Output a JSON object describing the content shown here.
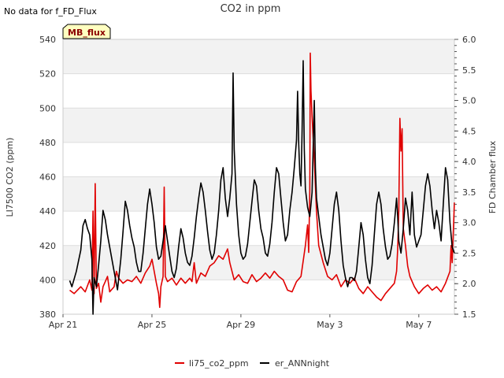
{
  "chart_data": {
    "type": "line",
    "title": "CO2 in ppm",
    "note": "No data for f_FD_Flux",
    "badge": "MB_flux",
    "ylabel": "LI7500 CO2 (ppm)",
    "y2label": "FD Chamber flux",
    "ylim": [
      380,
      540
    ],
    "y2lim": [
      1.5,
      6.0
    ],
    "yticks": [
      "380",
      "400",
      "420",
      "440",
      "460",
      "480",
      "500",
      "520",
      "540"
    ],
    "y2ticks": [
      "1.5",
      "2.0",
      "2.5",
      "3.0",
      "3.5",
      "4.0",
      "4.5",
      "5.0",
      "5.5",
      "6.0"
    ],
    "xlim": [
      0,
      17.6
    ],
    "xticks": [
      {
        "label": "Apr 21",
        "day": 0
      },
      {
        "label": "Apr 25",
        "day": 4
      },
      {
        "label": "Apr 29",
        "day": 8
      },
      {
        "label": "May 3",
        "day": 12
      },
      {
        "label": "May 7",
        "day": 16
      }
    ],
    "series": [
      {
        "name": "li75_co2_ppm",
        "axis": "left",
        "color": "#e00000",
        "points": [
          [
            0.3,
            394
          ],
          [
            0.5,
            392
          ],
          [
            0.8,
            396
          ],
          [
            1.0,
            393
          ],
          [
            1.2,
            400
          ],
          [
            1.3,
            394
          ],
          [
            1.35,
            440
          ],
          [
            1.4,
            392
          ],
          [
            1.45,
            456
          ],
          [
            1.5,
            395
          ],
          [
            1.6,
            398
          ],
          [
            1.7,
            387
          ],
          [
            1.8,
            396
          ],
          [
            1.9,
            399
          ],
          [
            2.0,
            402
          ],
          [
            2.1,
            393
          ],
          [
            2.3,
            396
          ],
          [
            2.4,
            405
          ],
          [
            2.5,
            401
          ],
          [
            2.7,
            398
          ],
          [
            2.9,
            400
          ],
          [
            3.1,
            399
          ],
          [
            3.3,
            402
          ],
          [
            3.5,
            398
          ],
          [
            3.7,
            404
          ],
          [
            3.9,
            408
          ],
          [
            4.0,
            412
          ],
          [
            4.1,
            405
          ],
          [
            4.2,
            398
          ],
          [
            4.3,
            392
          ],
          [
            4.35,
            384
          ],
          [
            4.4,
            396
          ],
          [
            4.5,
            402
          ],
          [
            4.55,
            454
          ],
          [
            4.6,
            402
          ],
          [
            4.7,
            399
          ],
          [
            4.9,
            401
          ],
          [
            5.1,
            397
          ],
          [
            5.3,
            401
          ],
          [
            5.5,
            398
          ],
          [
            5.7,
            401
          ],
          [
            5.8,
            399
          ],
          [
            5.9,
            410
          ],
          [
            6.0,
            398
          ],
          [
            6.2,
            404
          ],
          [
            6.4,
            402
          ],
          [
            6.6,
            408
          ],
          [
            6.8,
            410
          ],
          [
            7.0,
            414
          ],
          [
            7.2,
            412
          ],
          [
            7.4,
            418
          ],
          [
            7.5,
            410
          ],
          [
            7.7,
            400
          ],
          [
            7.9,
            403
          ],
          [
            8.1,
            399
          ],
          [
            8.3,
            398
          ],
          [
            8.5,
            403
          ],
          [
            8.7,
            399
          ],
          [
            8.9,
            401
          ],
          [
            9.1,
            404
          ],
          [
            9.3,
            401
          ],
          [
            9.5,
            405
          ],
          [
            9.7,
            402
          ],
          [
            9.9,
            400
          ],
          [
            10.1,
            394
          ],
          [
            10.3,
            393
          ],
          [
            10.5,
            399
          ],
          [
            10.7,
            402
          ],
          [
            10.9,
            420
          ],
          [
            11.0,
            432
          ],
          [
            11.05,
            416
          ],
          [
            11.1,
            452
          ],
          [
            11.12,
            532
          ],
          [
            11.15,
            510
          ],
          [
            11.2,
            495
          ],
          [
            11.3,
            470
          ],
          [
            11.4,
            440
          ],
          [
            11.5,
            420
          ],
          [
            11.7,
            410
          ],
          [
            11.9,
            402
          ],
          [
            12.1,
            400
          ],
          [
            12.3,
            403
          ],
          [
            12.5,
            396
          ],
          [
            12.7,
            400
          ],
          [
            12.9,
            398
          ],
          [
            13.1,
            401
          ],
          [
            13.3,
            395
          ],
          [
            13.5,
            392
          ],
          [
            13.7,
            396
          ],
          [
            13.9,
            393
          ],
          [
            14.1,
            390
          ],
          [
            14.3,
            388
          ],
          [
            14.5,
            392
          ],
          [
            14.7,
            395
          ],
          [
            14.9,
            398
          ],
          [
            15.0,
            405
          ],
          [
            15.05,
            418
          ],
          [
            15.1,
            440
          ],
          [
            15.15,
            494
          ],
          [
            15.2,
            475
          ],
          [
            15.25,
            488
          ],
          [
            15.3,
            430
          ],
          [
            15.4,
            420
          ],
          [
            15.5,
            408
          ],
          [
            15.6,
            402
          ],
          [
            15.8,
            396
          ],
          [
            16.0,
            392
          ],
          [
            16.2,
            395
          ],
          [
            16.4,
            397
          ],
          [
            16.6,
            394
          ],
          [
            16.8,
            396
          ],
          [
            17.0,
            393
          ],
          [
            17.2,
            398
          ],
          [
            17.4,
            405
          ],
          [
            17.45,
            420
          ],
          [
            17.5,
            410
          ],
          [
            17.55,
            428
          ],
          [
            17.6,
            445
          ]
        ]
      },
      {
        "name": "er_ANNnight",
        "axis": "right",
        "color": "#000000",
        "points": [
          [
            0.3,
            2.05
          ],
          [
            0.4,
            1.95
          ],
          [
            0.6,
            2.2
          ],
          [
            0.8,
            2.55
          ],
          [
            0.9,
            2.95
          ],
          [
            1.0,
            3.05
          ],
          [
            1.1,
            2.9
          ],
          [
            1.2,
            2.8
          ],
          [
            1.3,
            2.4
          ],
          [
            1.35,
            1.5
          ],
          [
            1.4,
            2.1
          ],
          [
            1.5,
            1.95
          ],
          [
            1.6,
            2.3
          ],
          [
            1.7,
            2.7
          ],
          [
            1.8,
            3.2
          ],
          [
            1.9,
            3.05
          ],
          [
            2.0,
            2.8
          ],
          [
            2.1,
            2.6
          ],
          [
            2.2,
            2.4
          ],
          [
            2.3,
            2.2
          ],
          [
            2.45,
            1.9
          ],
          [
            2.6,
            2.4
          ],
          [
            2.7,
            2.85
          ],
          [
            2.8,
            3.35
          ],
          [
            2.9,
            3.2
          ],
          [
            3.0,
            2.95
          ],
          [
            3.1,
            2.75
          ],
          [
            3.2,
            2.6
          ],
          [
            3.3,
            2.35
          ],
          [
            3.4,
            2.2
          ],
          [
            3.5,
            2.2
          ],
          [
            3.6,
            2.5
          ],
          [
            3.7,
            2.9
          ],
          [
            3.8,
            3.3
          ],
          [
            3.9,
            3.55
          ],
          [
            4.0,
            3.3
          ],
          [
            4.1,
            3.0
          ],
          [
            4.2,
            2.6
          ],
          [
            4.3,
            2.4
          ],
          [
            4.4,
            2.45
          ],
          [
            4.5,
            2.7
          ],
          [
            4.6,
            2.95
          ],
          [
            4.7,
            2.7
          ],
          [
            4.8,
            2.45
          ],
          [
            4.9,
            2.2
          ],
          [
            5.0,
            2.1
          ],
          [
            5.1,
            2.25
          ],
          [
            5.2,
            2.6
          ],
          [
            5.3,
            2.9
          ],
          [
            5.4,
            2.75
          ],
          [
            5.5,
            2.5
          ],
          [
            5.6,
            2.35
          ],
          [
            5.7,
            2.3
          ],
          [
            5.8,
            2.45
          ],
          [
            5.9,
            2.75
          ],
          [
            6.0,
            3.1
          ],
          [
            6.1,
            3.4
          ],
          [
            6.2,
            3.65
          ],
          [
            6.3,
            3.5
          ],
          [
            6.4,
            3.2
          ],
          [
            6.5,
            2.85
          ],
          [
            6.6,
            2.55
          ],
          [
            6.7,
            2.4
          ],
          [
            6.8,
            2.5
          ],
          [
            6.9,
            2.8
          ],
          [
            7.0,
            3.2
          ],
          [
            7.1,
            3.7
          ],
          [
            7.2,
            3.9
          ],
          [
            7.3,
            3.4
          ],
          [
            7.4,
            3.1
          ],
          [
            7.5,
            3.4
          ],
          [
            7.6,
            3.8
          ],
          [
            7.65,
            5.45
          ],
          [
            7.7,
            4.2
          ],
          [
            7.8,
            3.3
          ],
          [
            7.9,
            2.8
          ],
          [
            8.0,
            2.5
          ],
          [
            8.1,
            2.4
          ],
          [
            8.2,
            2.45
          ],
          [
            8.3,
            2.65
          ],
          [
            8.4,
            3.0
          ],
          [
            8.5,
            3.35
          ],
          [
            8.6,
            3.7
          ],
          [
            8.7,
            3.6
          ],
          [
            8.8,
            3.2
          ],
          [
            8.9,
            2.9
          ],
          [
            9.0,
            2.75
          ],
          [
            9.1,
            2.5
          ],
          [
            9.2,
            2.45
          ],
          [
            9.3,
            2.65
          ],
          [
            9.4,
            3.0
          ],
          [
            9.5,
            3.5
          ],
          [
            9.6,
            3.9
          ],
          [
            9.7,
            3.8
          ],
          [
            9.8,
            3.4
          ],
          [
            9.9,
            3.0
          ],
          [
            10.0,
            2.7
          ],
          [
            10.1,
            2.8
          ],
          [
            10.2,
            3.2
          ],
          [
            10.3,
            3.5
          ],
          [
            10.4,
            3.9
          ],
          [
            10.5,
            4.35
          ],
          [
            10.55,
            5.15
          ],
          [
            10.6,
            4.3
          ],
          [
            10.65,
            3.8
          ],
          [
            10.7,
            3.6
          ],
          [
            10.75,
            4.5
          ],
          [
            10.8,
            5.65
          ],
          [
            10.85,
            4.2
          ],
          [
            10.9,
            3.55
          ],
          [
            11.0,
            3.25
          ],
          [
            11.1,
            3.1
          ],
          [
            11.15,
            3.3
          ],
          [
            11.2,
            3.5
          ],
          [
            11.3,
            5.0
          ],
          [
            11.35,
            3.9
          ],
          [
            11.4,
            3.4
          ],
          [
            11.5,
            3.1
          ],
          [
            11.6,
            2.8
          ],
          [
            11.7,
            2.6
          ],
          [
            11.8,
            2.4
          ],
          [
            11.9,
            2.3
          ],
          [
            12.0,
            2.5
          ],
          [
            12.1,
            2.9
          ],
          [
            12.2,
            3.3
          ],
          [
            12.3,
            3.5
          ],
          [
            12.4,
            3.2
          ],
          [
            12.5,
            2.7
          ],
          [
            12.6,
            2.3
          ],
          [
            12.7,
            2.1
          ],
          [
            12.8,
            1.95
          ],
          [
            12.9,
            2.1
          ],
          [
            13.0,
            2.1
          ],
          [
            13.1,
            2.05
          ],
          [
            13.2,
            2.2
          ],
          [
            13.3,
            2.6
          ],
          [
            13.4,
            3.0
          ],
          [
            13.5,
            2.8
          ],
          [
            13.6,
            2.4
          ],
          [
            13.7,
            2.1
          ],
          [
            13.8,
            2.0
          ],
          [
            13.9,
            2.3
          ],
          [
            14.0,
            2.8
          ],
          [
            14.1,
            3.3
          ],
          [
            14.2,
            3.5
          ],
          [
            14.3,
            3.3
          ],
          [
            14.4,
            2.9
          ],
          [
            14.5,
            2.6
          ],
          [
            14.6,
            2.4
          ],
          [
            14.7,
            2.45
          ],
          [
            14.8,
            2.65
          ],
          [
            14.9,
            3.0
          ],
          [
            15.0,
            3.4
          ],
          [
            15.05,
            3.1
          ],
          [
            15.1,
            2.7
          ],
          [
            15.2,
            2.5
          ],
          [
            15.3,
            2.9
          ],
          [
            15.4,
            3.4
          ],
          [
            15.5,
            3.2
          ],
          [
            15.6,
            2.8
          ],
          [
            15.7,
            3.5
          ],
          [
            15.8,
            2.8
          ],
          [
            15.9,
            2.6
          ],
          [
            16.0,
            2.7
          ],
          [
            16.1,
            2.8
          ],
          [
            16.2,
            3.2
          ],
          [
            16.3,
            3.6
          ],
          [
            16.4,
            3.8
          ],
          [
            16.5,
            3.6
          ],
          [
            16.6,
            3.2
          ],
          [
            16.7,
            2.9
          ],
          [
            16.8,
            3.2
          ],
          [
            16.9,
            3.0
          ],
          [
            17.0,
            2.7
          ],
          [
            17.1,
            3.3
          ],
          [
            17.2,
            3.9
          ],
          [
            17.3,
            3.7
          ],
          [
            17.4,
            3.0
          ],
          [
            17.5,
            2.6
          ],
          [
            17.6,
            2.5
          ]
        ]
      }
    ]
  }
}
